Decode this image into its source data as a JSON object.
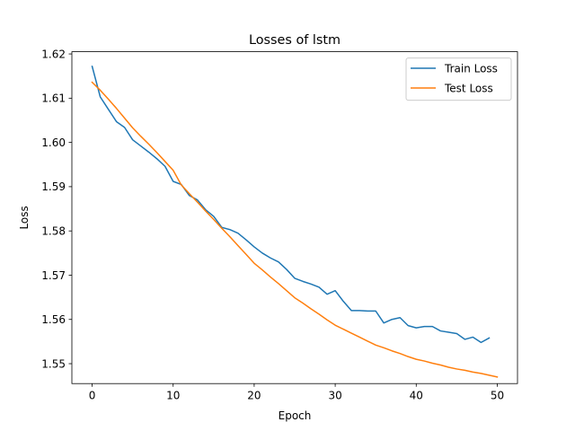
{
  "chart_data": {
    "type": "line",
    "title": "Losses of lstm",
    "xlabel": "Epoch",
    "ylabel": "Loss",
    "xlim": [
      -2.5,
      52.5
    ],
    "ylim": [
      1.5455,
      1.6205
    ],
    "xticks": [
      0,
      10,
      20,
      30,
      40,
      50
    ],
    "xtick_labels": [
      "0",
      "10",
      "20",
      "30",
      "40",
      "50"
    ],
    "yticks": [
      1.55,
      1.56,
      1.57,
      1.58,
      1.59,
      1.6,
      1.61,
      1.62
    ],
    "ytick_labels": [
      "1.55",
      "1.56",
      "1.57",
      "1.58",
      "1.59",
      "1.60",
      "1.61",
      "1.62"
    ],
    "grid": false,
    "legend_position": "top-right",
    "series": [
      {
        "name": "Train Loss",
        "color": "#1f77b4",
        "x": [
          0,
          1,
          2,
          3,
          4,
          5,
          6,
          7,
          8,
          9,
          10,
          11,
          12,
          13,
          14,
          15,
          16,
          17,
          18,
          19,
          20,
          21,
          22,
          23,
          24,
          25,
          26,
          27,
          28,
          29,
          30,
          31,
          32,
          33,
          34,
          35,
          36,
          37,
          38,
          39,
          40,
          41,
          42,
          43,
          44,
          45,
          46,
          47,
          48,
          49
        ],
        "values": [
          1.6172,
          1.6103,
          1.6075,
          1.6047,
          1.6034,
          1.6006,
          1.5992,
          1.5978,
          1.5963,
          1.5946,
          1.5912,
          1.5905,
          1.588,
          1.587,
          1.5848,
          1.5833,
          1.5808,
          1.5803,
          1.5795,
          1.578,
          1.5764,
          1.575,
          1.5739,
          1.573,
          1.5713,
          1.5693,
          1.5686,
          1.568,
          1.5673,
          1.5657,
          1.5665,
          1.5641,
          1.562,
          1.562,
          1.5619,
          1.5619,
          1.5592,
          1.56,
          1.5604,
          1.5586,
          1.5581,
          1.5584,
          1.5584,
          1.5574,
          1.5571,
          1.5568,
          1.5555,
          1.556,
          1.5548,
          1.5558
        ]
      },
      {
        "name": "Test Loss",
        "color": "#ff7f0e",
        "x": [
          0,
          1,
          2,
          3,
          4,
          5,
          6,
          7,
          8,
          9,
          10,
          11,
          12,
          13,
          14,
          15,
          16,
          17,
          18,
          19,
          20,
          21,
          22,
          23,
          24,
          25,
          26,
          27,
          28,
          29,
          30,
          31,
          32,
          33,
          34,
          35,
          36,
          37,
          38,
          39,
          40,
          41,
          42,
          43,
          44,
          45,
          46,
          47,
          48,
          49,
          50
        ],
        "values": [
          1.6136,
          1.6118,
          1.6098,
          1.6077,
          1.6055,
          1.6033,
          1.6014,
          1.5996,
          1.5977,
          1.5957,
          1.5937,
          1.5904,
          1.5884,
          1.5865,
          1.5845,
          1.5826,
          1.5806,
          1.5787,
          1.5767,
          1.5747,
          1.5727,
          1.5712,
          1.5696,
          1.5681,
          1.5665,
          1.5649,
          1.5637,
          1.5624,
          1.5612,
          1.5599,
          1.5587,
          1.5578,
          1.5569,
          1.556,
          1.5551,
          1.5542,
          1.5536,
          1.5529,
          1.5523,
          1.5516,
          1.551,
          1.5506,
          1.5501,
          1.5497,
          1.5492,
          1.5488,
          1.5485,
          1.5481,
          1.5478,
          1.5474,
          1.547
        ]
      }
    ]
  }
}
